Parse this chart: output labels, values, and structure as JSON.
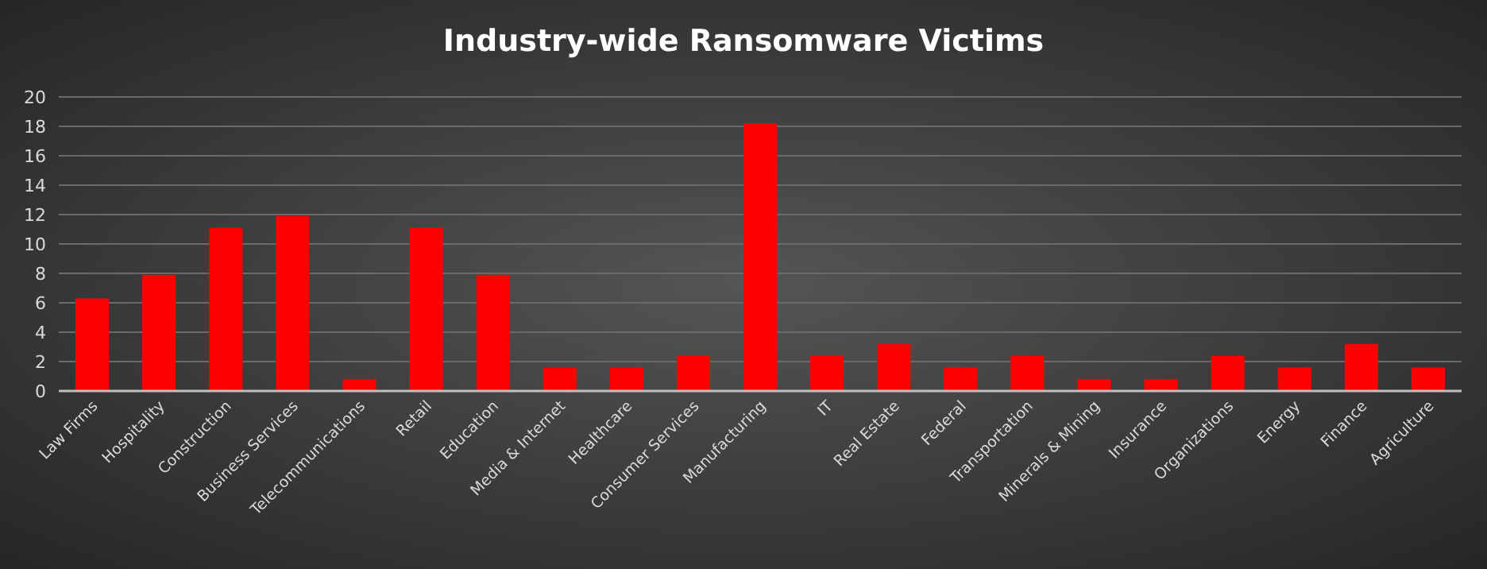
{
  "chart_data": {
    "type": "bar",
    "title": "Industry-wide Ransomware Victims",
    "categories": [
      "Law Firms",
      "Hospitality",
      "Construction",
      "Business Services",
      "Telecommunications",
      "Retail",
      "Education",
      "Media & Internet",
      "Healthcare",
      "Consumer Services",
      "Manufacturing",
      "IT",
      "Real Estate",
      "Federal",
      "Transportation",
      "Minerals & Mining",
      "Insurance",
      "Organizations",
      "Energy",
      "Finance",
      "Agriculture"
    ],
    "values": [
      6.3,
      7.9,
      11.1,
      11.9,
      0.8,
      11.1,
      7.9,
      1.6,
      1.6,
      2.4,
      18.2,
      2.4,
      3.2,
      1.6,
      2.4,
      0.8,
      0.8,
      2.4,
      1.6,
      3.2,
      1.6
    ],
    "color": "#ff0000",
    "ylim": [
      0,
      20
    ],
    "yticks": [
      0,
      2,
      4,
      6,
      8,
      10,
      12,
      14,
      16,
      18,
      20
    ],
    "grid": "y"
  }
}
